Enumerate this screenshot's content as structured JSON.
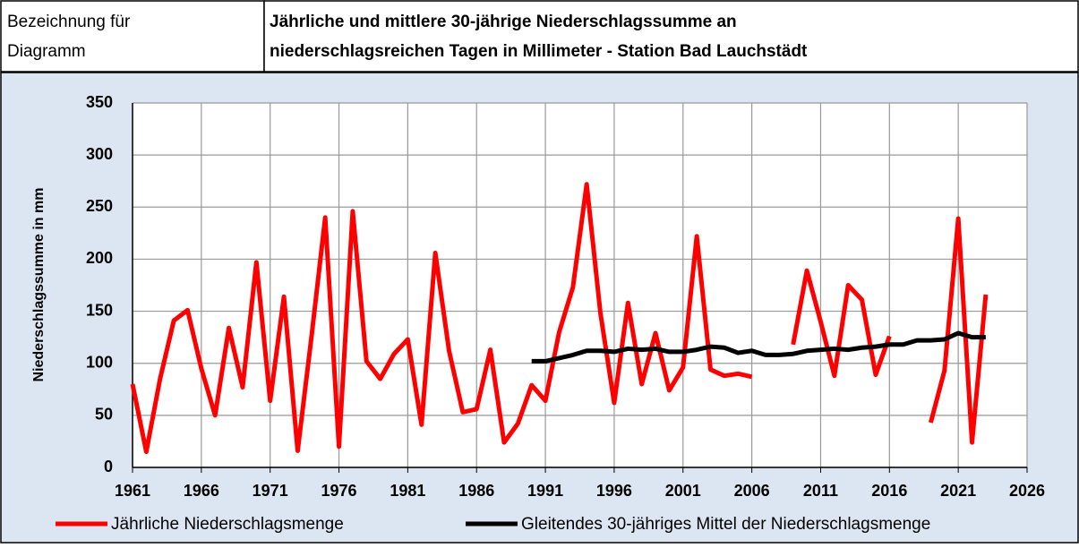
{
  "header": {
    "label": [
      "Bezeichnung für",
      "Diagramm"
    ],
    "title": [
      "Jährliche und mittlere 30-jährige Niederschlagssumme an",
      "niederschlagsreichen Tagen in Millimeter - Station Bad Lauchstädt"
    ]
  },
  "chart_data": {
    "type": "line",
    "y_label": "Niederschlagssumme in mm",
    "x": [
      1961,
      1962,
      1963,
      1964,
      1965,
      1966,
      1967,
      1968,
      1969,
      1970,
      1971,
      1972,
      1973,
      1974,
      1975,
      1976,
      1977,
      1978,
      1979,
      1980,
      1981,
      1982,
      1983,
      1984,
      1985,
      1986,
      1987,
      1988,
      1989,
      1990,
      1991,
      1992,
      1993,
      1994,
      1995,
      1996,
      1997,
      1998,
      1999,
      2000,
      2001,
      2002,
      2003,
      2004,
      2005,
      2006,
      2007,
      2008,
      2009,
      2010,
      2011,
      2012,
      2013,
      2014,
      2015,
      2016,
      2017,
      2018,
      2019,
      2020,
      2021,
      2022,
      2023
    ],
    "series": [
      {
        "name": "Jährliche Niederschlagsmenge",
        "color": "#ff0000",
        "values": [
          80,
          15,
          85,
          141,
          151,
          95,
          50,
          134,
          77,
          197,
          64,
          164,
          16,
          125,
          240,
          20,
          246,
          102,
          85,
          109,
          123,
          41,
          206,
          112,
          53,
          56,
          113,
          24,
          42,
          79,
          64,
          130,
          173,
          272,
          148,
          62,
          158,
          80,
          129,
          74,
          96,
          222,
          94,
          88,
          90,
          87,
          null,
          null,
          118,
          189,
          140,
          88,
          175,
          161,
          89,
          126,
          null,
          null,
          43,
          93,
          239,
          24,
          166
        ]
      },
      {
        "name": "Gleitendes 30-jähriges Mittel der Niederschlagsmenge",
        "color": "#000000",
        "values": [
          null,
          null,
          null,
          null,
          null,
          null,
          null,
          null,
          null,
          null,
          null,
          null,
          null,
          null,
          null,
          null,
          null,
          null,
          null,
          null,
          null,
          null,
          null,
          null,
          null,
          null,
          null,
          null,
          null,
          102,
          102,
          105,
          108,
          112,
          112,
          111,
          114,
          113,
          114,
          111,
          111,
          113,
          116,
          115,
          110,
          112,
          108,
          108,
          109,
          112,
          113,
          114,
          113,
          115,
          116,
          118,
          118,
          122,
          122,
          123,
          129,
          125,
          125
        ]
      }
    ],
    "xlim": [
      1961,
      2026
    ],
    "xticks": [
      1961,
      1966,
      1971,
      1976,
      1981,
      1986,
      1991,
      1996,
      2001,
      2006,
      2011,
      2016,
      2021,
      2026
    ],
    "ylim": [
      0,
      350
    ],
    "yticks": [
      0,
      50,
      100,
      150,
      200,
      250,
      300,
      350
    ],
    "grid": true,
    "legend": "bottom"
  }
}
